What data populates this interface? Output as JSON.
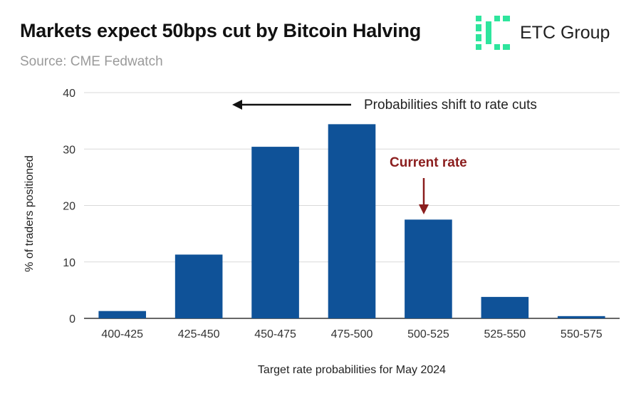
{
  "header": {
    "title": "Markets expect 50bps cut by Bitcoin Halving",
    "subtitle": "Source: CME Fedwatch"
  },
  "logo": {
    "text": "ETC Group",
    "color": "#2ee59d"
  },
  "chart_data": {
    "type": "bar",
    "categories": [
      "400-425",
      "425-450",
      "450-475",
      "475-500",
      "500-525",
      "525-550",
      "550-575"
    ],
    "values": [
      1.3,
      11.3,
      30.4,
      34.4,
      17.5,
      3.8,
      0.4
    ],
    "xlabel": "Target rate probabilities for May 2024",
    "ylabel": "% of traders positioned",
    "ylim": [
      0,
      40
    ],
    "yticks": [
      0,
      10,
      20,
      30,
      40
    ],
    "grid": true,
    "bar_color": "#0f5298",
    "annotations": {
      "shift_text": "Probabilities shift to rate cuts",
      "current_text": "Current rate",
      "current_category": "500-525",
      "current_color": "#8b1e1e"
    }
  }
}
